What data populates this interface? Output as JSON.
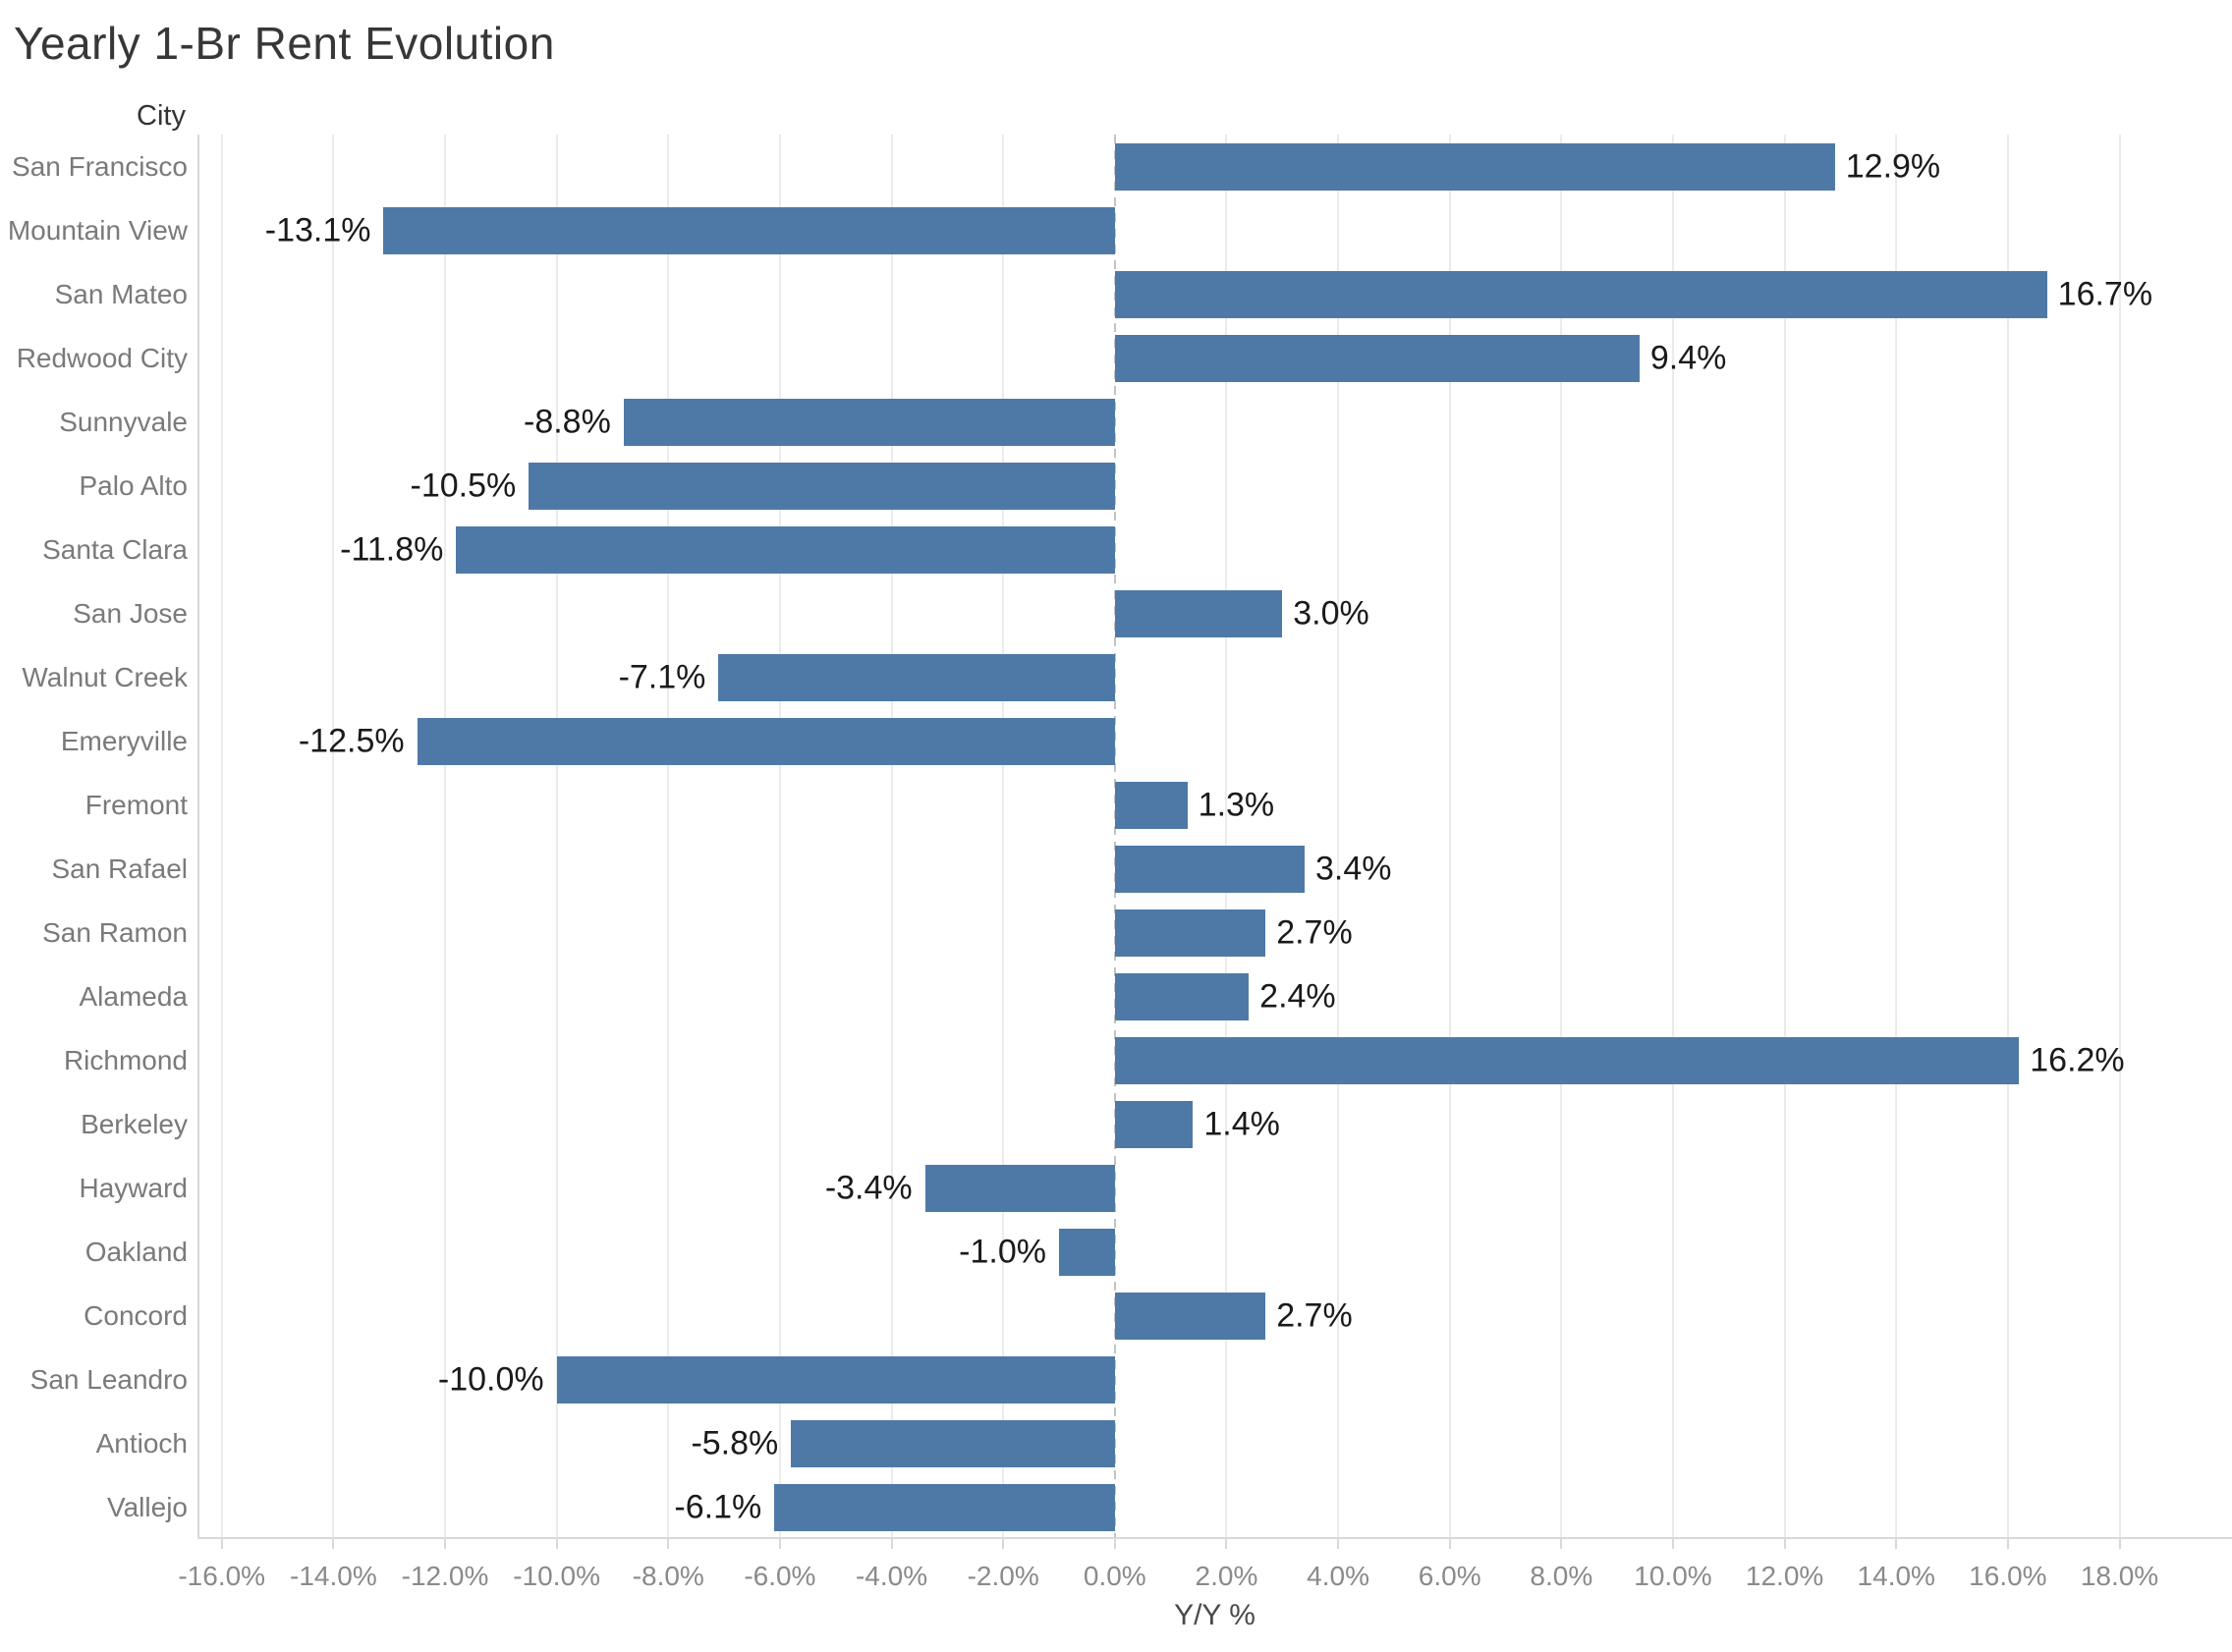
{
  "title": "Yearly 1-Br Rent Evolution",
  "row_header": "City",
  "colors": {
    "bar": "#4e79a7",
    "title_text": "#373737",
    "row_label_text": "#7a7a7a",
    "value_label_text": "#1a1a1a",
    "tick_label_text": "#8a8a8a",
    "gridline": "#ebebeb",
    "axis_line": "#d9d9d9",
    "zero_line": "#c3c3c3"
  },
  "chart_data": {
    "type": "bar",
    "orientation": "horizontal",
    "title": "Yearly 1-Br Rent Evolution",
    "xlabel": "Y/Y %",
    "ylabel": "City",
    "grid": "vertical-on",
    "legend": "none",
    "zero_line": "dashed",
    "xlim": [
      -16.4,
      20.05
    ],
    "x_ticks": [
      -16,
      -14,
      -12,
      -10,
      -8,
      -6,
      -4,
      -2,
      0,
      2,
      4,
      6,
      8,
      10,
      12,
      14,
      16,
      18
    ],
    "x_tick_labels": [
      "-16.0%",
      "-14.0%",
      "-12.0%",
      "-10.0%",
      "-8.0%",
      "-6.0%",
      "-4.0%",
      "-2.0%",
      "0.0%",
      "2.0%",
      "4.0%",
      "6.0%",
      "8.0%",
      "10.0%",
      "12.0%",
      "14.0%",
      "16.0%",
      "18.0%"
    ],
    "categories": [
      "San Francisco",
      "Mountain View",
      "San Mateo",
      "Redwood City",
      "Sunnyvale",
      "Palo Alto",
      "Santa Clara",
      "San Jose",
      "Walnut Creek",
      "Emeryville",
      "Fremont",
      "San Rafael",
      "San Ramon",
      "Alameda",
      "Richmond",
      "Berkeley",
      "Hayward",
      "Oakland",
      "Concord",
      "San Leandro",
      "Antioch",
      "Vallejo"
    ],
    "values": [
      12.9,
      -13.1,
      16.7,
      9.4,
      -8.8,
      -10.5,
      -11.8,
      3.0,
      -7.1,
      -12.5,
      1.3,
      3.4,
      2.7,
      2.4,
      16.2,
      1.4,
      -3.4,
      -1.0,
      2.7,
      -10.0,
      -5.8,
      -6.1
    ],
    "value_labels": [
      "12.9%",
      "-13.1%",
      "16.7%",
      "9.4%",
      "-8.8%",
      "-10.5%",
      "-11.8%",
      "3.0%",
      "-7.1%",
      "-12.5%",
      "1.3%",
      "3.4%",
      "2.7%",
      "2.4%",
      "16.2%",
      "1.4%",
      "-3.4%",
      "-1.0%",
      "2.7%",
      "-10.0%",
      "-5.8%",
      "-6.1%"
    ]
  }
}
